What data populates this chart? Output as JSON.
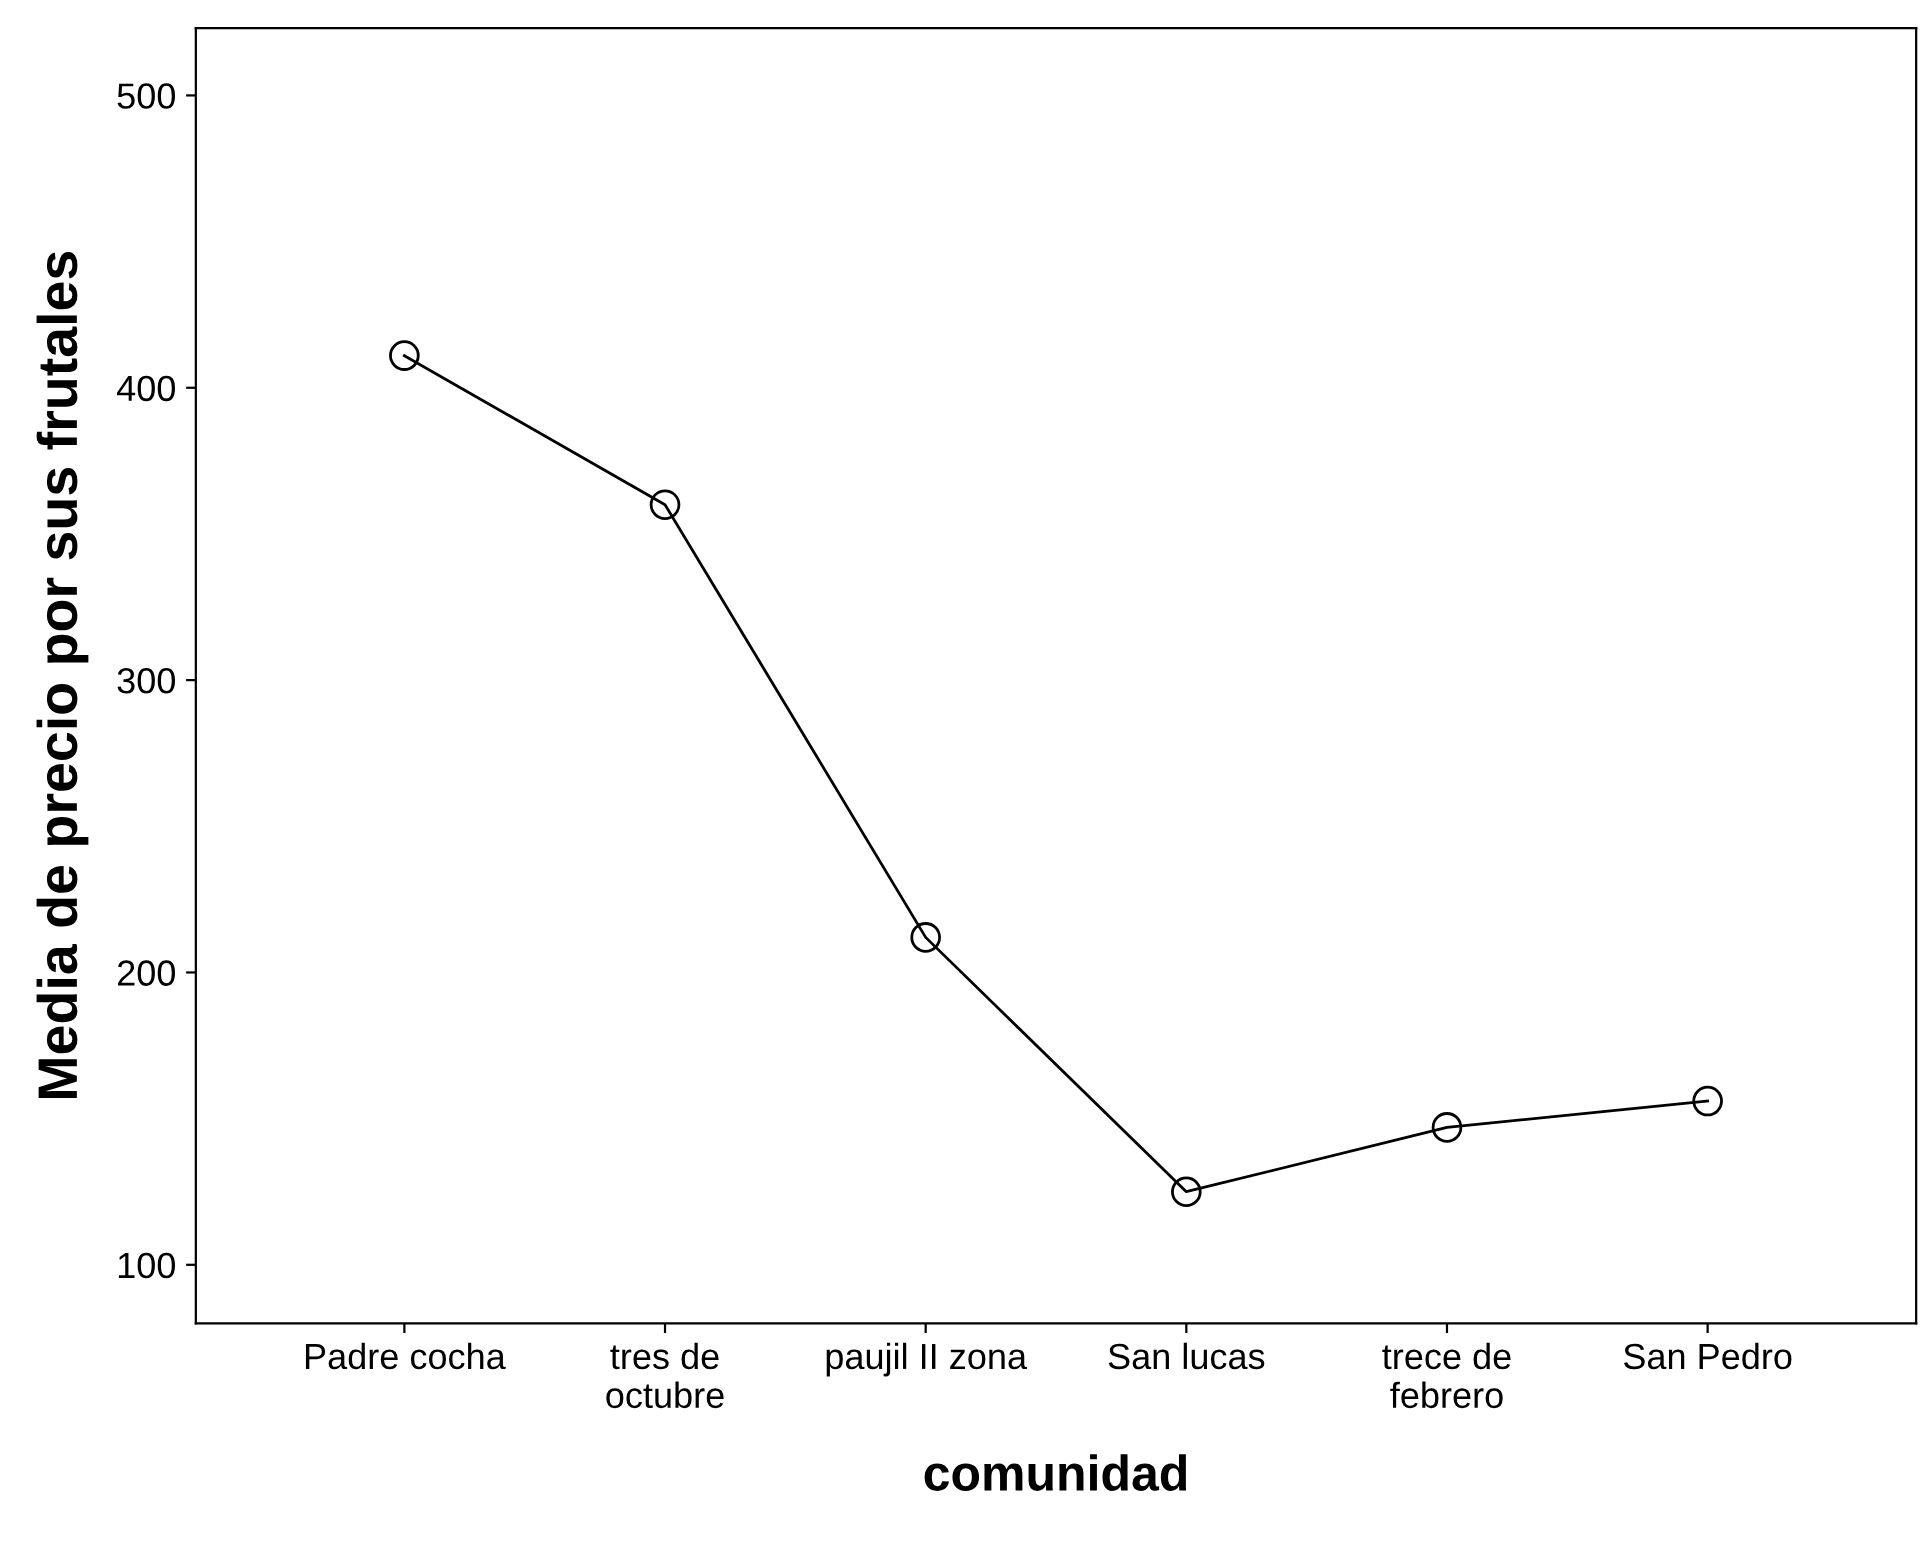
{
  "chart_data": {
    "type": "line",
    "xlabel": "comunidad",
    "ylabel": "Media de precio por sus frutales",
    "categories": [
      "Padre cocha",
      "tres de\noctubre",
      "paujil II zona",
      "San lucas",
      "trece de\nfebrero",
      "San Pedro"
    ],
    "series": [
      {
        "color": "#000000",
        "values": [
          411,
          360,
          212,
          125,
          147,
          156
        ]
      }
    ],
    "ylim": [
      80,
      523
    ],
    "yticks": [
      100,
      200,
      300,
      400,
      500
    ],
    "grid": false,
    "legend": false,
    "marker": "circle",
    "line_style": "solid"
  }
}
